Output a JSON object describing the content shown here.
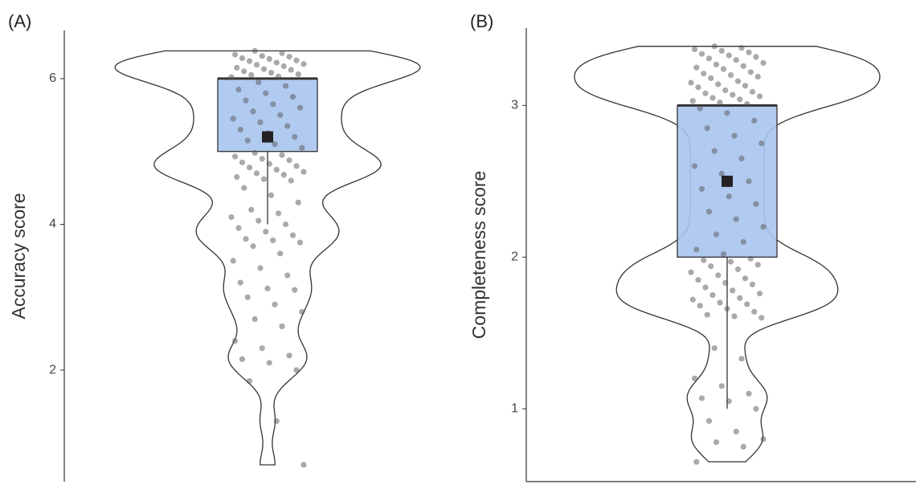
{
  "chart_data": [
    {
      "type": "violin",
      "panel_label": "(A)",
      "ylabel": "Accuracy score",
      "ylim": [
        0.47,
        6.66
      ],
      "yticks": [
        2,
        4,
        6
      ],
      "x_axis_line": false,
      "box": {
        "whisker_low": 4,
        "q1": 5,
        "median": 6,
        "q3": 6,
        "whisker_high": 6
      },
      "mean": 5.2,
      "box_color": "#a9c4ee",
      "point_color": "#555555",
      "points": [
        6.38,
        6.35,
        6.33,
        6.31,
        6.3,
        6.28,
        6.27,
        6.25,
        6.24,
        6.22,
        6.2,
        6.19,
        6.17,
        6.15,
        6.13,
        6.12,
        6.1,
        6.08,
        6.06,
        6.05,
        6.03,
        6.02,
        5.95,
        5.9,
        5.85,
        5.8,
        5.75,
        5.7,
        5.65,
        5.6,
        5.55,
        5.5,
        5.45,
        5.4,
        5.35,
        5.3,
        5.25,
        5.2,
        5.15,
        5.1,
        5.05,
        4.98,
        4.95,
        4.93,
        4.9,
        4.88,
        4.85,
        4.83,
        4.8,
        4.78,
        4.75,
        4.72,
        4.7,
        4.68,
        4.65,
        4.62,
        4.6,
        4.5,
        4.4,
        4.3,
        4.2,
        4.15,
        4.1,
        4.05,
        4.0,
        3.95,
        3.9,
        3.85,
        3.8,
        3.78,
        3.75,
        3.7,
        3.6,
        3.5,
        3.4,
        3.3,
        3.2,
        3.12,
        3.1,
        3.0,
        2.9,
        2.8,
        2.7,
        2.6,
        2.4,
        2.3,
        2.2,
        2.15,
        2.1,
        2.0,
        1.85,
        1.3,
        0.7
      ]
    },
    {
      "type": "violin",
      "panel_label": "(B)",
      "ylabel": "Completeness score",
      "ylim": [
        0.52,
        3.51
      ],
      "yticks": [
        1,
        2,
        3
      ],
      "x_axis_line": true,
      "box": {
        "whisker_low": 1,
        "q1": 2,
        "median": 3,
        "q3": 3,
        "whisker_high": 3
      },
      "mean": 2.5,
      "box_color": "#a9c4ee",
      "point_color": "#555555",
      "points": [
        3.39,
        3.38,
        3.37,
        3.36,
        3.35,
        3.34,
        3.33,
        3.32,
        3.31,
        3.3,
        3.28,
        3.27,
        3.26,
        3.25,
        3.24,
        3.22,
        3.21,
        3.2,
        3.19,
        3.18,
        3.16,
        3.15,
        3.14,
        3.13,
        3.12,
        3.1,
        3.09,
        3.08,
        3.07,
        3.06,
        3.05,
        3.04,
        3.03,
        3.02,
        3.01,
        2.98,
        2.95,
        2.9,
        2.85,
        2.8,
        2.75,
        2.7,
        2.65,
        2.6,
        2.55,
        2.5,
        2.45,
        2.4,
        2.35,
        2.3,
        2.25,
        2.2,
        2.15,
        2.1,
        2.05,
        2.02,
        1.99,
        1.98,
        1.97,
        1.95,
        1.94,
        1.92,
        1.9,
        1.88,
        1.86,
        1.85,
        1.83,
        1.82,
        1.8,
        1.78,
        1.76,
        1.75,
        1.73,
        1.72,
        1.7,
        1.69,
        1.68,
        1.66,
        1.64,
        1.62,
        1.61,
        1.6,
        1.4,
        1.33,
        1.2,
        1.15,
        1.1,
        1.07,
        1.05,
        1.0,
        0.92,
        0.85,
        0.8,
        0.78,
        0.75,
        0.65
      ]
    }
  ]
}
